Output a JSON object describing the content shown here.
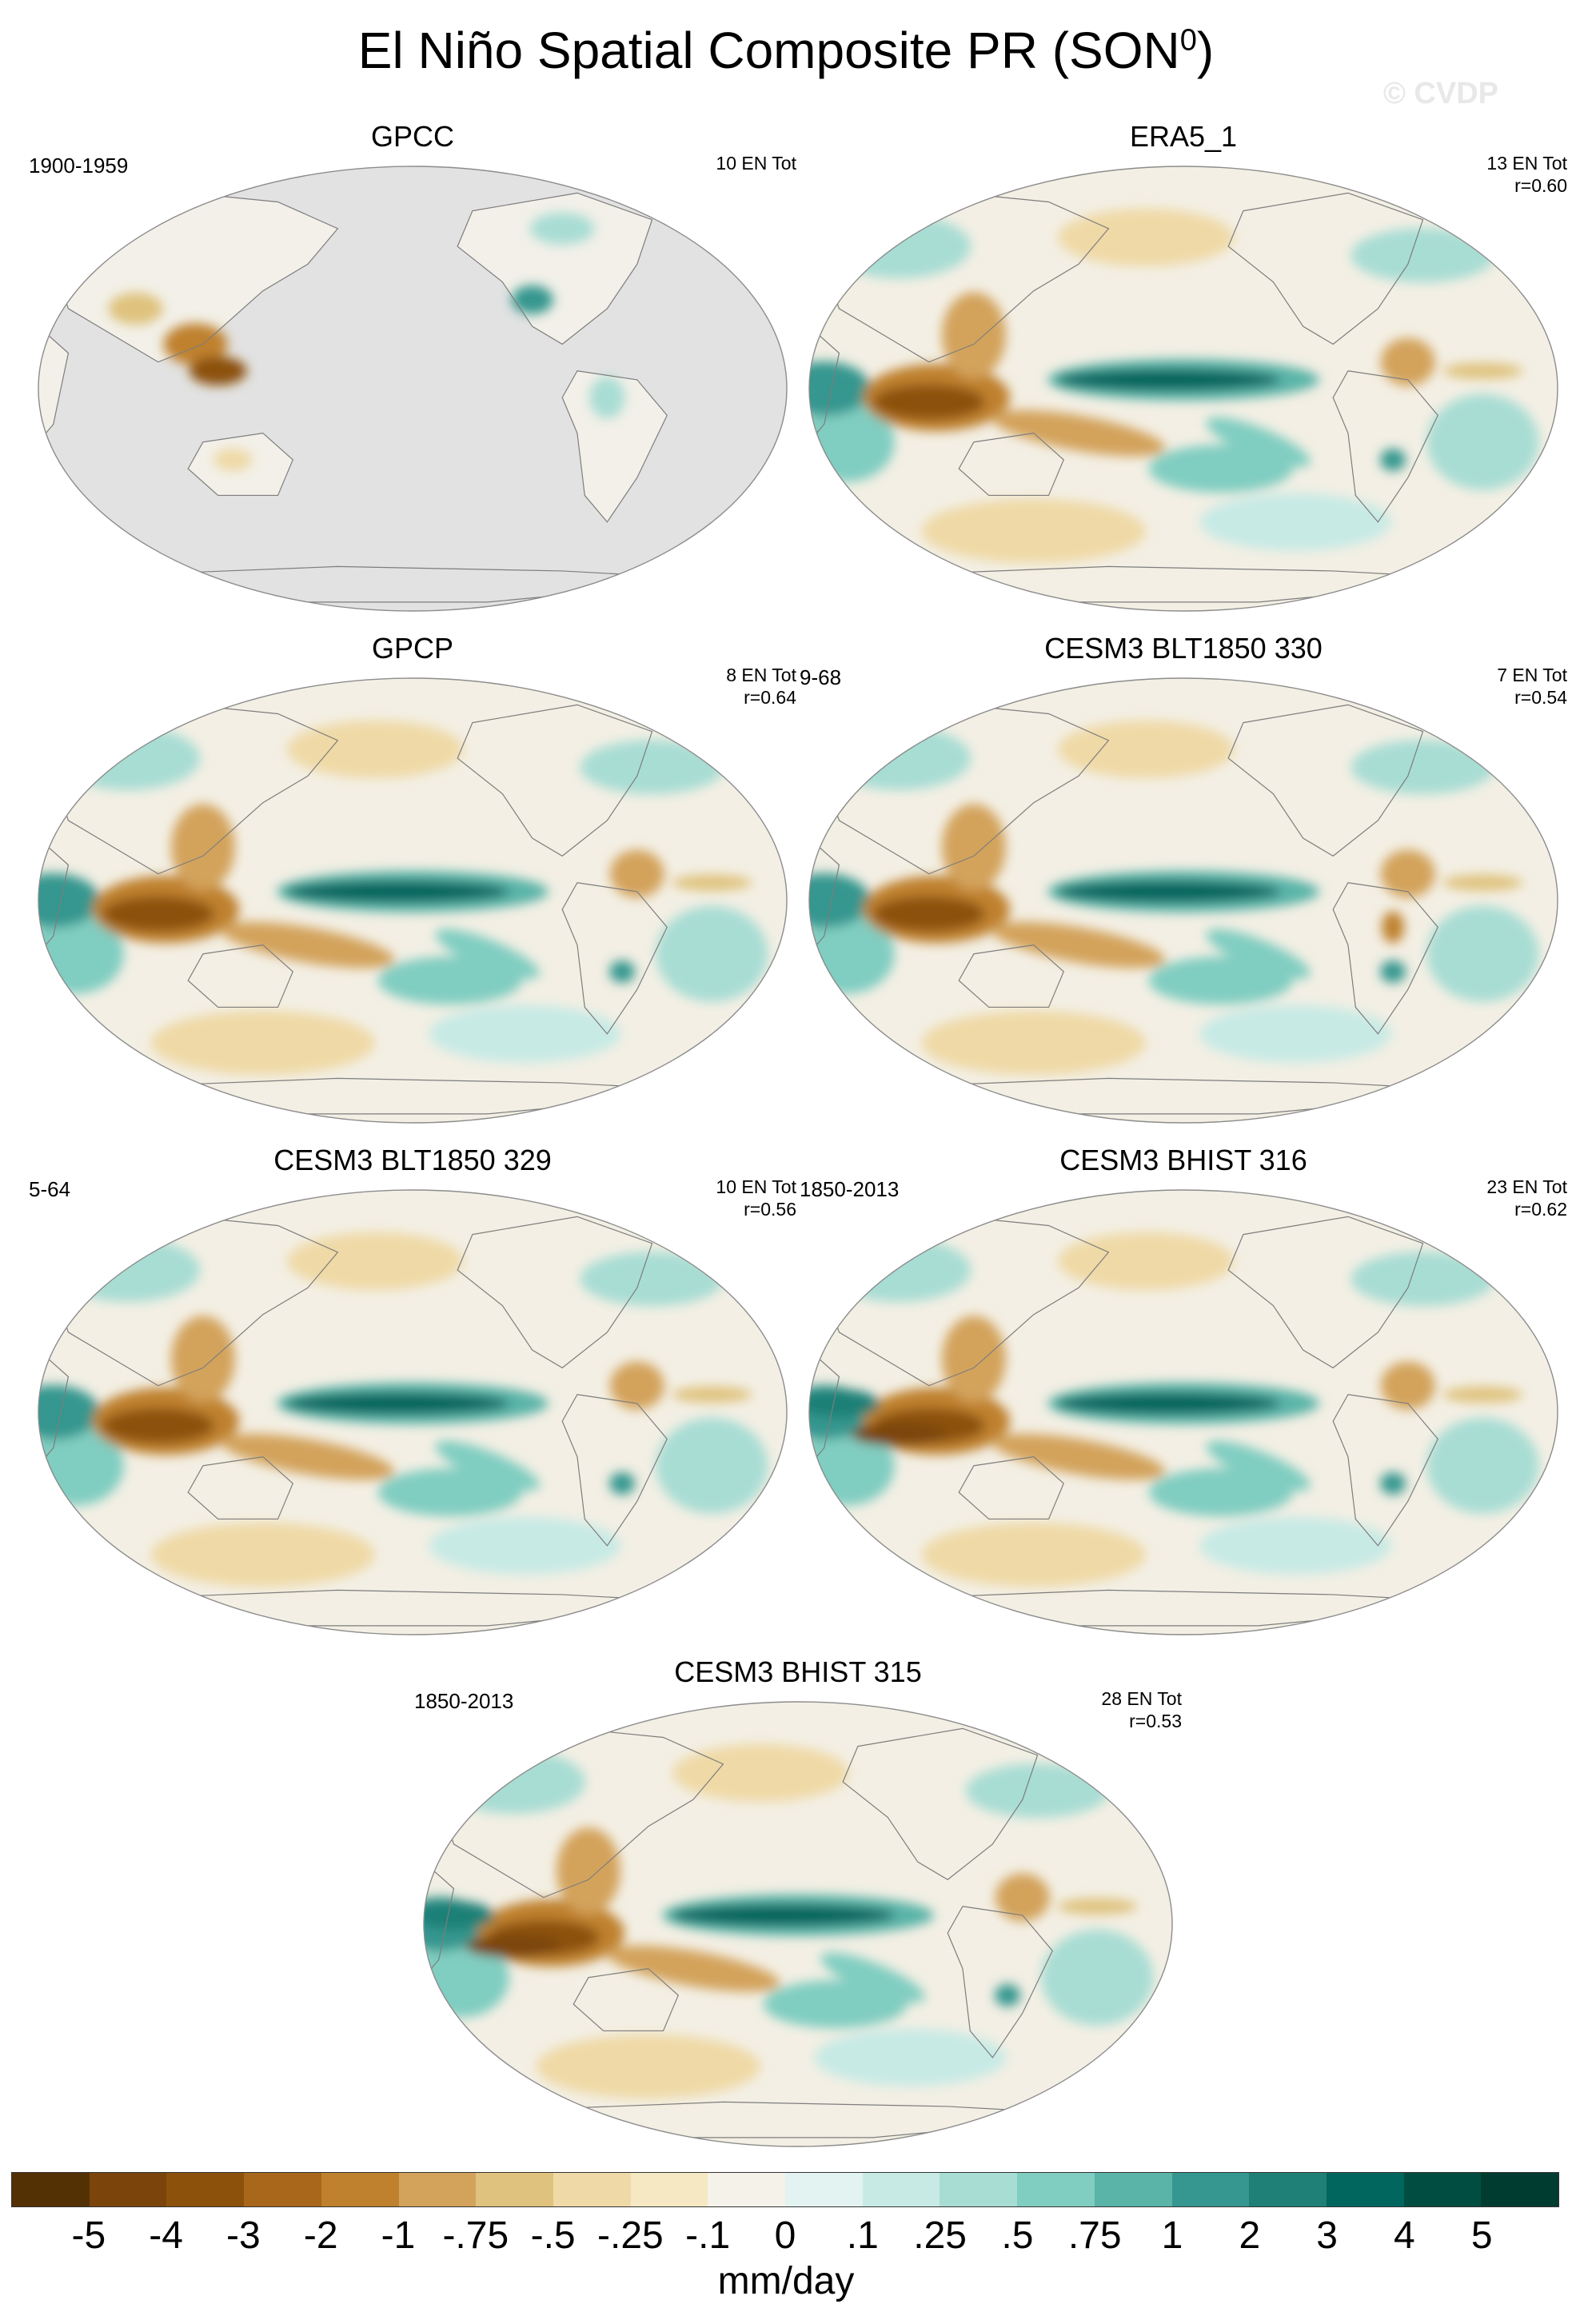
{
  "figure": {
    "title_main": "El Niño Spatial Composite PR (SON",
    "title_sup": "0",
    "title_close": ")",
    "credit": "© CVDP"
  },
  "panels": [
    {
      "title": "GPCC",
      "years": "1900-1959",
      "stats_line1": "10 EN Tot",
      "stats_line2": "",
      "masked_ocean": true
    },
    {
      "title": "ERA5_1",
      "years": "",
      "stats_line1": "13 EN Tot",
      "stats_line2": "r=0.60",
      "masked_ocean": false
    },
    {
      "title": "GPCP",
      "years": "",
      "stats_line1": "8 EN Tot",
      "stats_line2": "r=0.64",
      "masked_ocean": false
    },
    {
      "title": "CESM3 BLT1850 330",
      "years": "9-68",
      "stats_line1": "7 EN Tot",
      "stats_line2": "r=0.54",
      "masked_ocean": false
    },
    {
      "title": "CESM3 BLT1850 329",
      "years": "5-64",
      "stats_line1": "10 EN Tot",
      "stats_line2": "r=0.56",
      "masked_ocean": false
    },
    {
      "title": "CESM3 BHIST 316",
      "years": "1850-2013",
      "stats_line1": "23 EN Tot",
      "stats_line2": "r=0.62",
      "masked_ocean": false
    },
    {
      "title": "CESM3 BHIST 315",
      "years": "1850-2013",
      "stats_line1": "28 EN Tot",
      "stats_line2": "r=0.53",
      "masked_ocean": false
    }
  ],
  "colorbar": {
    "colors": [
      "#543005",
      "#7a440b",
      "#8c510a",
      "#a9671b",
      "#bf812d",
      "#d3a35c",
      "#dfc27d",
      "#efd9a6",
      "#f6e8c3",
      "#f5f2ea",
      "#e3f3f1",
      "#c7eae5",
      "#a8ddd4",
      "#80cdc1",
      "#5ab4a8",
      "#35978f",
      "#1f8077",
      "#01665e",
      "#014d42",
      "#003c30"
    ],
    "labels": [
      "-5",
      "-4",
      "-3",
      "-2",
      "-1",
      "-.75",
      "-.5",
      "-.25",
      "-.1",
      "0",
      ".1",
      ".25",
      ".5",
      ".75",
      "1",
      "2",
      "3",
      "4",
      "5"
    ],
    "units": "mm/day"
  },
  "chart_data": {
    "type": "map",
    "projection": "Robinson-like global",
    "variable": "precipitation composite anomaly",
    "units": "mm/day",
    "levels": [
      -5,
      -4,
      -3,
      -2,
      -1,
      -0.75,
      -0.5,
      -0.25,
      -0.1,
      0,
      0.1,
      0.25,
      0.5,
      0.75,
      1,
      2,
      3,
      4,
      5
    ],
    "panel_count": 7
  }
}
